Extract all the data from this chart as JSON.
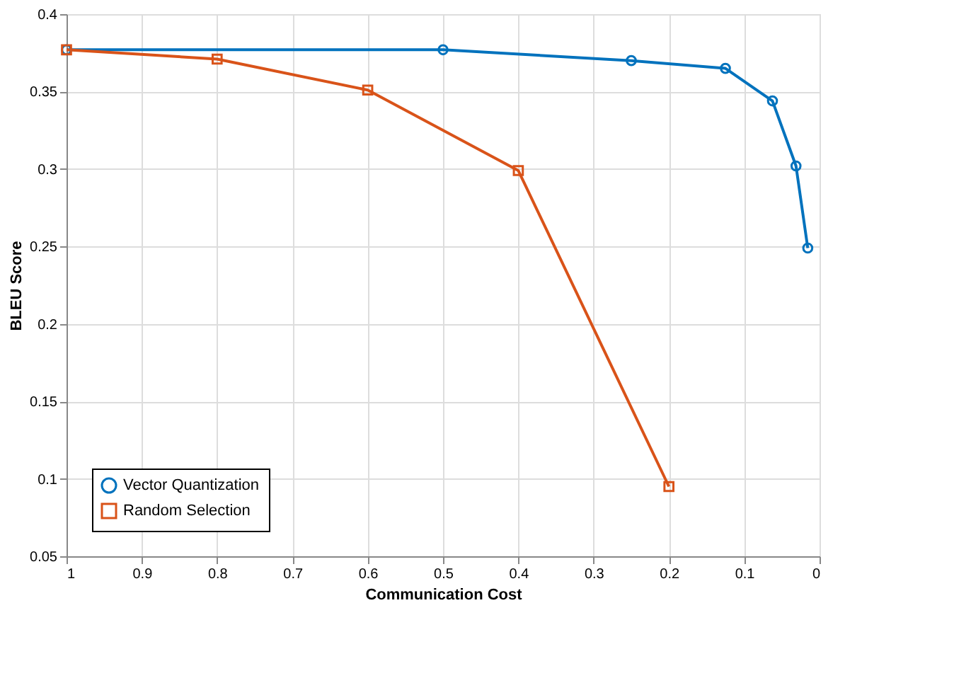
{
  "chart_data": {
    "type": "line",
    "xlabel": "Communication Cost",
    "ylabel": "BLEU Score",
    "xlim": [
      1,
      0
    ],
    "xticks": [
      1,
      0.9,
      0.8,
      0.7,
      0.6,
      0.5,
      0.4,
      0.3,
      0.2,
      0.1,
      0
    ],
    "ylim": [
      0.05,
      0.4
    ],
    "yticks": [
      0.05,
      0.1,
      0.15,
      0.2,
      0.25,
      0.3,
      0.35,
      0.4
    ],
    "grid": true,
    "legend": "bottom left",
    "line_style": "solid",
    "series": [
      {
        "name": "Vector Quantization",
        "color": "#0072bd",
        "marker": "circle",
        "x": [
          1,
          0.5,
          0.25,
          0.125,
          0.0625,
          0.03125,
          0.015625
        ],
        "values": [
          0.377,
          0.377,
          0.37,
          0.365,
          0.344,
          0.302,
          0.249
        ]
      },
      {
        "name": "Random Selection",
        "color": "#d95319",
        "marker": "square",
        "x": [
          1,
          0.8,
          0.6,
          0.4,
          0.2
        ],
        "values": [
          0.377,
          0.371,
          0.351,
          0.299,
          0.095
        ]
      }
    ]
  }
}
